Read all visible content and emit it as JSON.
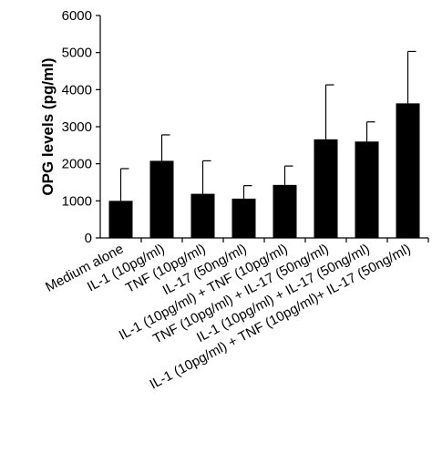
{
  "chart_data": {
    "type": "bar",
    "title": "",
    "xlabel": "",
    "ylabel": "OPG levels (pg/ml)",
    "ylim": [
      0,
      6000
    ],
    "yticks": [
      "0",
      "1000",
      "2000",
      "3000",
      "4000",
      "5000",
      "6000"
    ],
    "grid": false,
    "categories": [
      "Medium alone",
      "IL-1 (10pg/ml)",
      "TNF (10pg/ml)",
      "IL-17 (50ng/ml)",
      "IL-1 (10pg/ml) + TNF (10pg/ml)",
      "TNF (10pg/ml) + IL-17 (50ng/ml)",
      "IL-1 (10pg/ml) + IL-17 (50ng/ml)",
      "IL-1 (10pg/ml) + TNF (10pg/ml)+ IL-17 (50ng/ml)"
    ],
    "series": [
      {
        "values": [
          1000,
          2080,
          1190,
          1060,
          1430,
          2660,
          2600,
          3630
        ],
        "error_plus": [
          870,
          700,
          890,
          350,
          510,
          1470,
          530,
          1400
        ]
      }
    ],
    "bar_color": "#000000"
  }
}
